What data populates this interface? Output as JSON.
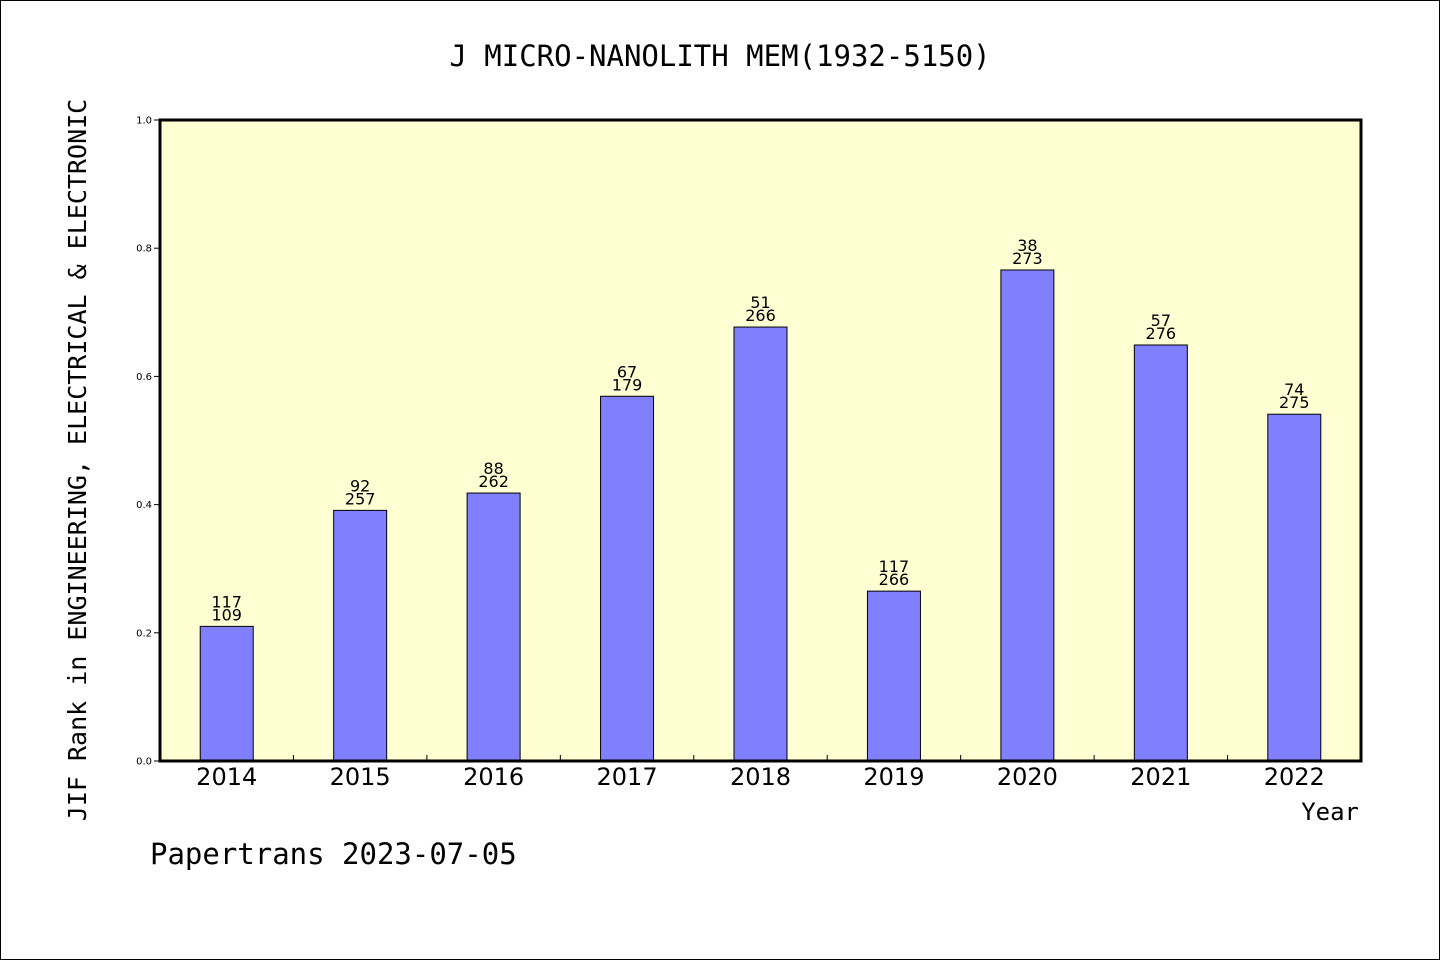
{
  "chart_data": {
    "type": "bar",
    "title": "J MICRO-NANOLITH MEM(1932-5150)",
    "ylabel": "JIF Rank in ENGINEERING, ELECTRICAL & ELECTRONIC",
    "xlabel": "Year",
    "footer": "Papertrans 2023-07-05",
    "ylim": [
      0,
      1.0
    ],
    "yticks": [
      "0.0",
      "0.2",
      "0.4",
      "0.6",
      "0.8",
      "1.0"
    ],
    "categories": [
      "2014",
      "2015",
      "2016",
      "2017",
      "2018",
      "2019",
      "2020",
      "2021",
      "2022"
    ],
    "values": [
      0.21,
      0.391,
      0.418,
      0.569,
      0.677,
      0.265,
      0.766,
      0.649,
      0.541
    ],
    "rank_labels": [
      "117",
      "92",
      "88",
      "67",
      "51",
      "117",
      "38",
      "57",
      "74"
    ],
    "total_labels": [
      "109",
      "257",
      "262",
      "179",
      "266",
      "266",
      "273",
      "276",
      "275"
    ],
    "colors": {
      "plot_background": "#ffffd4",
      "bar_fill": "#8080ff",
      "bar_stroke": "#000000"
    }
  }
}
